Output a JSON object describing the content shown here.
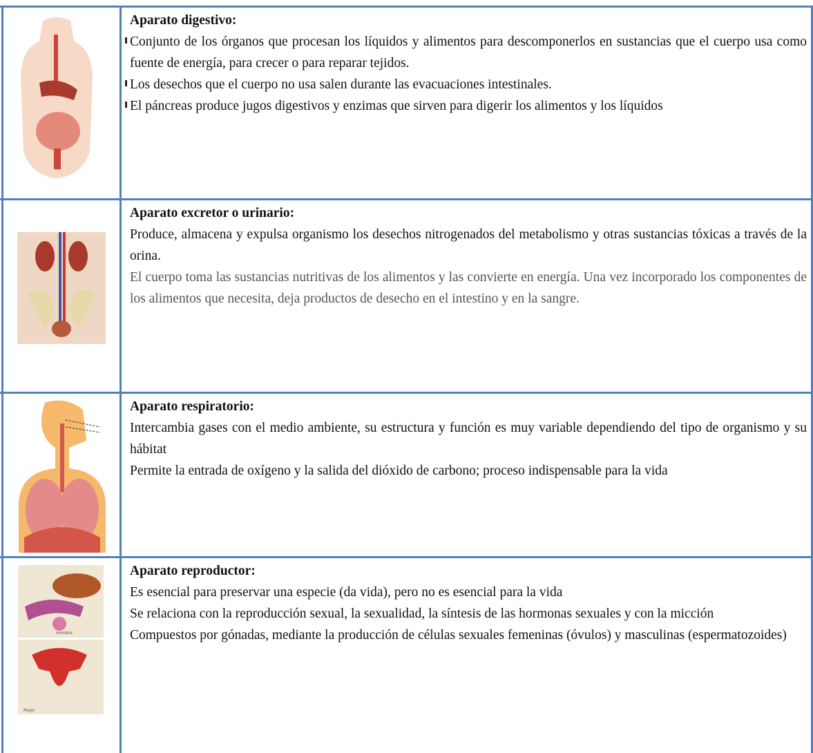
{
  "table": {
    "rows": [
      {
        "heading": "Aparato digestivo:",
        "paragraphs": [
          "Conjunto de los órganos que procesan los líquidos y alimentos para descomponerlos en sustancias que el cuerpo usa como fuente de energía, para crecer o para reparar tejidos.",
          "Los desechos que el cuerpo no usa salen durante las evacuaciones intestinales.",
          "El páncreas produce jugos digestivos y enzimas que sirven para digerir los alimentos y los líquidos"
        ]
      },
      {
        "heading": "Aparato excretor o urinario:",
        "paragraphs": [
          "Produce, almacena y expulsa organismo los desechos nitrogenados del metabolismo y otras sustancias tóxicas a través de la orina.",
          "El cuerpo toma las sustancias nutritivas de los alimentos y las convierte en energía. Una vez incorporado los componentes de los alimentos que necesita, deja productos de desecho en el intestino y en la sangre."
        ]
      },
      {
        "heading": "Aparato respiratorio:",
        "paragraphs": [
          "Intercambia gases con el medio ambiente, su estructura y función es muy variable dependiendo del tipo de organismo y su hábitat",
          "Permite la entrada de oxígeno y la salida del dióxido de carbono; proceso indispensable para la vida"
        ]
      },
      {
        "heading": "Aparato reproductor:",
        "image_labels": [
          "Hombre",
          "Mujer"
        ],
        "paragraphs": [
          "Es esencial para preservar una especie (da vida), pero no es esencial para la vida",
          "Se relaciona con la reproducción sexual, la sexualidad, la síntesis de las hormonas sexuales y con la micción",
          "Compuestos por gónadas, mediante la producción de células sexuales femeninas (óvulos) y masculinas (espermatozoides)"
        ]
      }
    ]
  }
}
